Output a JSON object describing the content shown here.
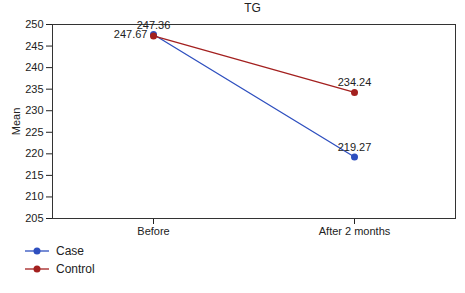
{
  "chart_data": {
    "type": "line",
    "title": "TG",
    "ylabel": "Mean",
    "categories": [
      "Before",
      "After 2 months"
    ],
    "series": [
      {
        "name": "Case",
        "color": "#2e4fbf",
        "values": [
          247.67,
          219.27
        ],
        "marker": "circle"
      },
      {
        "name": "Control",
        "color": "#a3201f",
        "values": [
          247.36,
          234.24
        ],
        "marker": "circle"
      }
    ],
    "ylim": [
      205,
      250
    ],
    "yticks": [
      205,
      210,
      215,
      220,
      225,
      230,
      235,
      240,
      245,
      250
    ],
    "grid": false,
    "data_labels": true,
    "legend": "bottom-left"
  }
}
